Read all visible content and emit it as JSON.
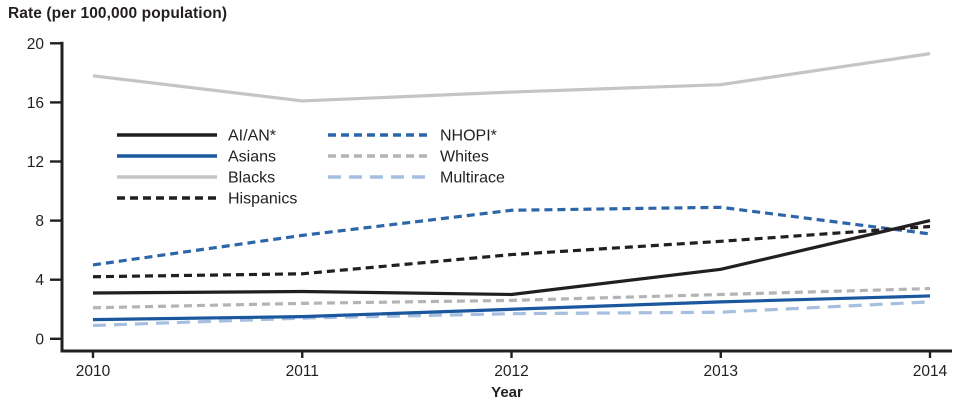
{
  "chart_data": {
    "type": "line",
    "title": "Rate (per 100,000 population)",
    "xlabel": "Year",
    "ylabel": "Rate (per 100,000 population)",
    "x": [
      2010,
      2011,
      2012,
      2013,
      2014
    ],
    "ylim": [
      0,
      20
    ],
    "yticks": [
      0,
      4,
      8,
      12,
      16,
      20
    ],
    "grid": false,
    "legend_position": "inside-upper-left, two columns",
    "axis_color": "#231f20",
    "series": [
      {
        "name": "Blacks",
        "values": [
          17.8,
          16.1,
          16.7,
          17.2,
          19.3
        ],
        "color": "#c5c5c9",
        "dash": "solid"
      },
      {
        "name": "Multirace",
        "values": [
          0.9,
          1.4,
          1.7,
          1.8,
          2.5
        ],
        "color": "#a7bfdf",
        "dash": "long-dash"
      },
      {
        "name": "Whites",
        "values": [
          2.1,
          2.4,
          2.6,
          3.0,
          3.4
        ],
        "color": "#b4b4b8",
        "dash": "dash"
      },
      {
        "name": "Asians",
        "values": [
          1.3,
          1.5,
          2.0,
          2.5,
          2.9
        ],
        "color": "#1a579f",
        "dash": "solid"
      },
      {
        "name": "NHOPI*",
        "values": [
          5.0,
          7.0,
          8.7,
          8.9,
          7.1
        ],
        "color": "#2d66a8",
        "dash": "dash"
      },
      {
        "name": "Hispanics",
        "values": [
          4.2,
          4.4,
          5.7,
          6.6,
          7.6
        ],
        "color": "#231f20",
        "dash": "dash"
      },
      {
        "name": "AI/AN*",
        "values": [
          3.1,
          3.2,
          3.0,
          4.7,
          8.0
        ],
        "color": "#231f20",
        "dash": "solid"
      }
    ],
    "legend_columns": [
      [
        "AI/AN*",
        "Asians",
        "Blacks",
        "Hispanics"
      ],
      [
        "NHOPI*",
        "Whites",
        "Multirace"
      ]
    ]
  }
}
